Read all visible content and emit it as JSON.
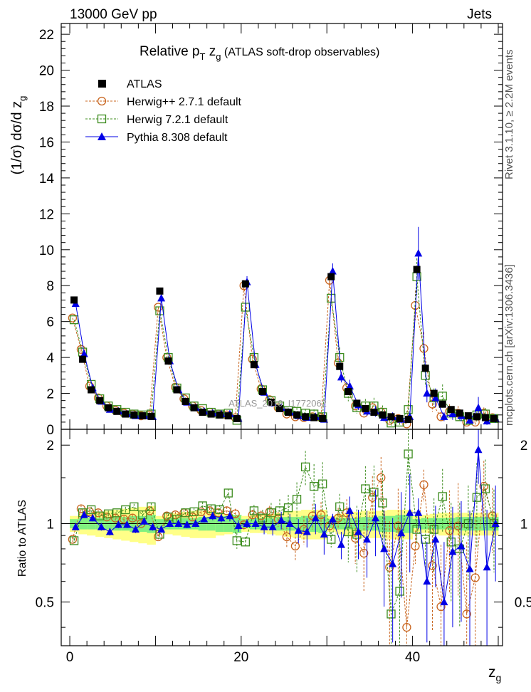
{
  "header": {
    "left": "13000 GeV pp",
    "right": "Jets"
  },
  "side_labels": {
    "rivet": "Rivet 3.1.10, ≥ 2.2M events",
    "mcplots": "mcplots.cern.ch [arXiv:1306.3436]"
  },
  "watermark": "ATLAS_2019_I1772062",
  "title": {
    "main": "Relative p",
    "sub_T": "T",
    "z": " z",
    "sub_g": "g",
    "rest": " (ATLAS soft-drop observables)"
  },
  "y_label": {
    "main": "(1/σ) dσ/d z",
    "sub": "g"
  },
  "ratio_label": "Ratio to ATLAS",
  "x_label": {
    "main": "z",
    "sub": "g"
  },
  "colors": {
    "atlas": "#000000",
    "herwigpp": "#c8641e",
    "herwig7": "#3c8c1e",
    "pythia": "#0000e6",
    "band_inner": "#80f080",
    "band_outer": "#ffff88"
  },
  "chart_data": {
    "type": "scatter",
    "x_range": [
      -1,
      50.5
    ],
    "main": {
      "ylim": [
        0,
        22.6
      ],
      "yticks": [
        "0",
        "2",
        "4",
        "6",
        "8",
        "10",
        "12",
        "14",
        "16",
        "18",
        "20",
        "22"
      ]
    },
    "ratio": {
      "ylim": [
        0.34,
        2.3
      ],
      "yticks": [
        "0.5",
        "1",
        "2"
      ]
    },
    "xticks": [
      "0",
      "20",
      "40"
    ],
    "x": [
      0.5,
      1.5,
      2.5,
      3.5,
      4.5,
      5.5,
      6.5,
      7.5,
      8.5,
      9.5,
      10.5,
      11.5,
      12.5,
      13.5,
      14.5,
      15.5,
      16.5,
      17.5,
      18.5,
      19.5,
      20.5,
      21.5,
      22.5,
      23.5,
      24.5,
      25.5,
      26.5,
      27.5,
      28.5,
      29.5,
      30.5,
      31.5,
      32.5,
      33.5,
      34.5,
      35.5,
      36.5,
      37.5,
      38.5,
      39.5,
      40.5,
      41.5,
      42.5,
      43.5,
      44.5,
      45.5,
      46.5,
      47.5,
      48.5,
      49.5
    ],
    "legend": [
      "ATLAS",
      "Herwig++ 2.7.1 default",
      "Herwig 7.2.1 default",
      "Pythia 8.308 default"
    ],
    "series": [
      {
        "name": "ATLAS",
        "values": [
          7.2,
          3.9,
          2.2,
          1.6,
          1.2,
          1.0,
          0.85,
          0.8,
          0.75,
          0.72,
          7.7,
          3.8,
          2.2,
          1.55,
          1.2,
          0.95,
          0.85,
          0.8,
          0.75,
          0.6,
          8.1,
          3.6,
          2.1,
          1.5,
          1.15,
          0.95,
          0.8,
          0.7,
          0.65,
          0.6,
          8.5,
          3.5,
          2.1,
          1.45,
          1.15,
          0.95,
          0.8,
          0.7,
          0.6,
          0.55,
          8.9,
          3.4,
          2.0,
          1.4,
          1.1,
          0.9,
          0.75,
          0.7,
          0.65,
          0.6
        ]
      },
      {
        "name": "Herwig++ 2.7.1 default",
        "values": [
          6.2,
          4.45,
          2.4,
          1.75,
          1.3,
          1.05,
          0.9,
          0.85,
          0.75,
          0.8,
          6.8,
          4.0,
          2.35,
          1.7,
          1.3,
          1.05,
          0.95,
          0.85,
          0.8,
          0.65,
          8.0,
          3.9,
          2.25,
          1.65,
          1.2,
          0.85,
          0.7,
          0.65,
          0.7,
          0.65,
          8.3,
          3.7,
          2.3,
          1.3,
          0.9,
          1.2,
          0.95,
          0.5,
          0.6,
          0.3,
          6.9,
          4.5,
          1.4,
          0.7,
          1.0,
          0.9,
          0.4,
          0.4,
          0.9,
          0.65
        ]
      },
      {
        "name": "Herwig 7.2.1 default",
        "values": [
          6.1,
          4.3,
          2.5,
          1.7,
          1.3,
          1.1,
          0.95,
          0.85,
          0.8,
          0.85,
          6.6,
          4.0,
          2.3,
          1.75,
          1.3,
          1.15,
          0.95,
          0.85,
          0.9,
          0.5,
          6.8,
          4.0,
          2.2,
          1.6,
          1.3,
          1.05,
          1.0,
          0.9,
          0.85,
          0.7,
          7.3,
          4.0,
          2.0,
          1.2,
          1.3,
          1.3,
          0.95,
          0.35,
          0.4,
          1.1,
          8.5,
          3.0,
          1.75,
          1.85,
          0.9,
          0.7,
          0.5,
          0.8,
          0.85,
          0.6
        ]
      },
      {
        "name": "Pythia 8.308 default",
        "values": [
          7.0,
          4.2,
          2.3,
          1.55,
          1.1,
          1.0,
          0.85,
          0.75,
          0.75,
          0.7,
          7.3,
          3.8,
          2.2,
          1.5,
          1.2,
          1.0,
          0.9,
          0.85,
          0.85,
          0.6,
          8.2,
          3.6,
          2.05,
          1.45,
          1.2,
          0.95,
          0.75,
          0.65,
          0.7,
          0.55,
          8.8,
          2.9,
          2.4,
          1.35,
          1.0,
          1.0,
          0.65,
          0.7,
          0.55,
          0.7,
          9.8,
          2.0,
          1.75,
          0.7,
          0.85,
          0.75,
          0.5,
          1.2,
          0.45,
          0.6
        ]
      }
    ],
    "ratio_values": {
      "Herwig++ 2.7.1 default": [
        0.87,
        1.14,
        1.11,
        1.1,
        1.06,
        1.05,
        1.04,
        1.05,
        1.0,
        1.12,
        0.89,
        1.07,
        1.08,
        1.1,
        1.06,
        1.11,
        1.12,
        1.1,
        1.12,
        1.09,
        0.99,
        1.08,
        1.07,
        1.11,
        1.04,
        0.89,
        0.82,
        0.95,
        1.07,
        1.08,
        0.98,
        1.05,
        1.1,
        0.88,
        0.77,
        1.26,
        1.5,
        0.68,
        0.98,
        0.4,
        0.82,
        1.41,
        0.69,
        0.48,
        0.94,
        0.98,
        0.45,
        0.62,
        1.39,
        1.07
      ],
      "Herwig 7.2.1 default": [
        0.86,
        1.1,
        1.13,
        1.07,
        1.09,
        1.1,
        1.13,
        1.16,
        1.08,
        1.16,
        0.91,
        1.06,
        1.04,
        1.1,
        1.11,
        1.17,
        1.14,
        1.13,
        1.31,
        0.86,
        0.85,
        1.12,
        1.05,
        1.1,
        1.12,
        1.15,
        1.24,
        1.65,
        1.39,
        1.42,
        0.87,
        1.16,
        0.93,
        0.91,
        1.36,
        1.32,
        1.2,
        0.45,
        0.55,
        1.85,
        0.95,
        0.87,
        0.95,
        1.27,
        0.85,
        0.8,
        1.0,
        1.26,
        1.36,
        1.0
      ],
      "Pythia 8.308 default": [
        0.97,
        1.08,
        1.05,
        0.97,
        0.93,
        0.99,
        0.99,
        0.95,
        1.02,
        0.97,
        0.95,
        1.0,
        1.0,
        0.99,
        1.0,
        1.04,
        1.07,
        1.05,
        1.07,
        0.98,
        1.0,
        1.0,
        0.97,
        0.97,
        1.03,
        1.0,
        0.94,
        0.93,
        1.05,
        0.91,
        1.04,
        0.83,
        1.12,
        0.93,
        0.87,
        1.05,
        0.8,
        0.7,
        0.92,
        1.1,
        1.1,
        0.6,
        0.87,
        0.5,
        0.78,
        0.82,
        0.67,
        1.92,
        0.68,
        1.0
      ]
    },
    "ratio_errors": {
      "Herwig++ 2.7.1 default": [
        0.02,
        0.04,
        0.03,
        0.03,
        0.03,
        0.03,
        0.03,
        0.03,
        0.03,
        0.03,
        0.02,
        0.03,
        0.03,
        0.03,
        0.03,
        0.03,
        0.03,
        0.04,
        0.04,
        0.05,
        0.04,
        0.05,
        0.05,
        0.06,
        0.07,
        0.08,
        0.1,
        0.12,
        0.12,
        0.13,
        0.05,
        0.1,
        0.14,
        0.18,
        0.22,
        0.26,
        0.3,
        0.34,
        0.38,
        0.45,
        0.12,
        0.2,
        0.3,
        0.35,
        0.4,
        0.45,
        0.4,
        0.45,
        0.35,
        0.3
      ],
      "Herwig 7.2.1 default": [
        0.02,
        0.03,
        0.03,
        0.03,
        0.03,
        0.03,
        0.03,
        0.03,
        0.04,
        0.04,
        0.02,
        0.03,
        0.03,
        0.04,
        0.04,
        0.04,
        0.04,
        0.05,
        0.05,
        0.06,
        0.04,
        0.06,
        0.08,
        0.1,
        0.12,
        0.14,
        0.2,
        0.25,
        0.3,
        0.3,
        0.06,
        0.14,
        0.22,
        0.26,
        0.3,
        0.35,
        0.4,
        0.4,
        0.42,
        0.45,
        0.12,
        0.2,
        0.3,
        0.35,
        0.35,
        0.4,
        0.4,
        0.45,
        0.4,
        0.35
      ],
      "Pythia 8.308 default": [
        0.02,
        0.03,
        0.03,
        0.03,
        0.03,
        0.03,
        0.03,
        0.03,
        0.03,
        0.03,
        0.02,
        0.03,
        0.03,
        0.03,
        0.03,
        0.03,
        0.04,
        0.04,
        0.05,
        0.05,
        0.04,
        0.05,
        0.06,
        0.07,
        0.08,
        0.09,
        0.1,
        0.12,
        0.14,
        0.15,
        0.05,
        0.1,
        0.15,
        0.2,
        0.25,
        0.3,
        0.32,
        0.35,
        0.4,
        0.45,
        0.15,
        0.25,
        0.3,
        0.35,
        0.38,
        0.4,
        0.45,
        0.5,
        0.45,
        0.4
      ]
    },
    "band_inner": [
      0.04,
      0.05,
      0.05,
      0.05,
      0.05,
      0.06,
      0.06,
      0.07,
      0.07,
      0.08,
      0.04,
      0.05,
      0.05,
      0.05,
      0.05,
      0.06,
      0.06,
      0.07,
      0.07,
      0.08,
      0.04,
      0.05,
      0.05,
      0.05,
      0.06,
      0.06,
      0.06,
      0.07,
      0.07,
      0.08,
      0.04,
      0.05,
      0.05,
      0.05,
      0.06,
      0.06,
      0.07,
      0.07,
      0.08,
      0.08,
      0.04,
      0.05,
      0.05,
      0.05,
      0.05,
      0.06,
      0.06,
      0.06,
      0.06,
      0.06
    ],
    "band_outer": [
      0.07,
      0.09,
      0.1,
      0.11,
      0.12,
      0.13,
      0.14,
      0.15,
      0.16,
      0.17,
      0.07,
      0.09,
      0.1,
      0.11,
      0.12,
      0.12,
      0.12,
      0.1,
      0.09,
      0.08,
      0.07,
      0.08,
      0.08,
      0.09,
      0.1,
      0.11,
      0.12,
      0.13,
      0.13,
      0.13,
      0.07,
      0.09,
      0.1,
      0.11,
      0.12,
      0.12,
      0.12,
      0.13,
      0.13,
      0.13,
      0.07,
      0.08,
      0.09,
      0.1,
      0.1,
      0.1,
      0.1,
      0.1,
      0.1,
      0.1
    ]
  }
}
